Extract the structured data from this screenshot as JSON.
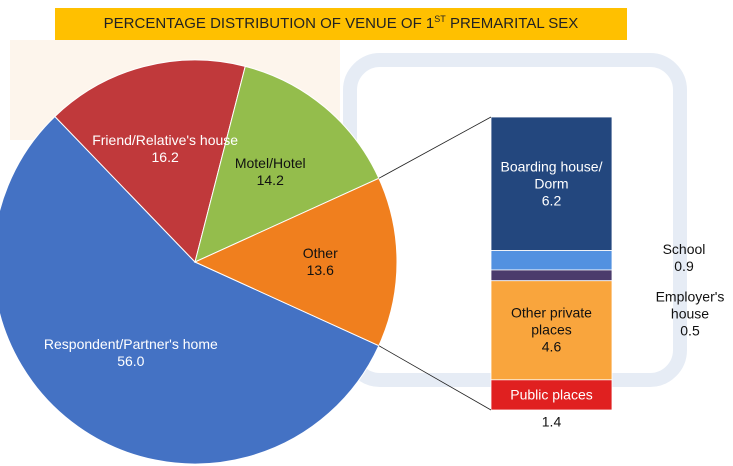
{
  "chart_data": {
    "type": "pie-of-bar",
    "title": [
      "PERCENTAGE DISTRIBUTION OF VENUE OF 1",
      "ST",
      " PREMARITAL SEX"
    ],
    "pie": {
      "categories": [
        "Respondent/Partner's home",
        "Friend/Relative's house",
        "Motel/Hotel",
        "Other"
      ],
      "values": [
        56.0,
        16.2,
        14.2,
        13.6
      ],
      "value_labels": [
        "56.0",
        "16.2",
        "14.2",
        "13.6"
      ],
      "colors": [
        "#4472c4",
        "#c0393b",
        "#94bd4c",
        "#f07f1e"
      ]
    },
    "bar": {
      "categories": [
        "Boarding house/ Dorm",
        "School",
        "Employer's house",
        "Other private places",
        "Public places"
      ],
      "values": [
        6.2,
        0.9,
        0.5,
        4.6,
        1.4
      ],
      "value_labels": [
        "6.2",
        "0.9",
        "0.5",
        "4.6",
        "1.4"
      ],
      "colors": [
        "#23477e",
        "#5291e0",
        "#4b3b6c",
        "#f9a53d",
        "#e02020"
      ]
    }
  }
}
